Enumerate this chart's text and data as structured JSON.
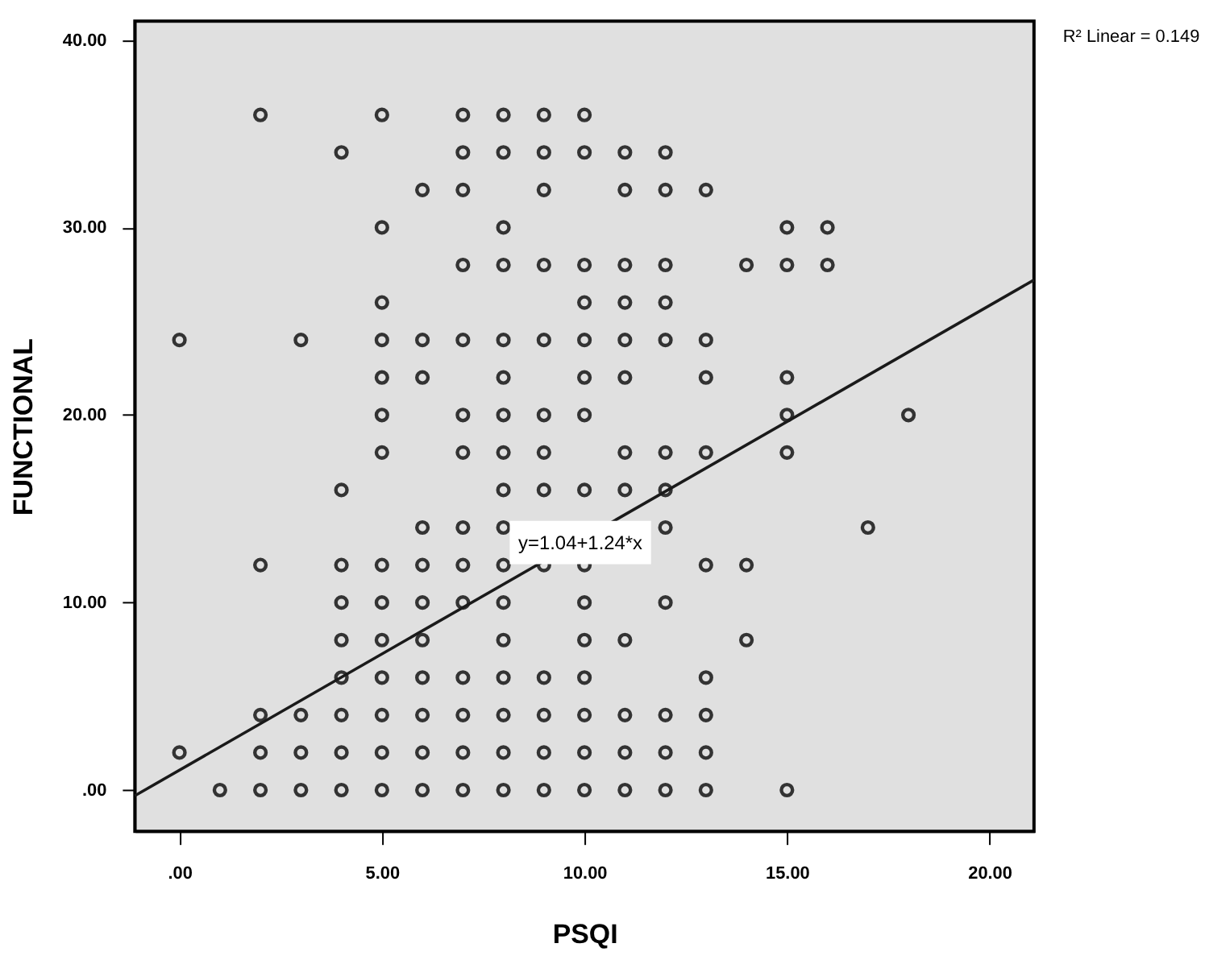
{
  "chart_data": {
    "type": "scatter",
    "xlabel": "PSQI",
    "ylabel": "FUNCTIONAL",
    "xlim": [
      -1.1,
      21.1
    ],
    "ylim": [
      -2.2,
      41
    ],
    "xticks": [
      {
        "value": 0,
        "label": ".00"
      },
      {
        "value": 5,
        "label": "5.00"
      },
      {
        "value": 10,
        "label": "10.00"
      },
      {
        "value": 15,
        "label": "15.00"
      },
      {
        "value": 20,
        "label": "20.00"
      }
    ],
    "yticks": [
      {
        "value": 0,
        "label": ".00"
      },
      {
        "value": 10,
        "label": "10.00"
      },
      {
        "value": 20,
        "label": "20.00"
      },
      {
        "value": 30,
        "label": "30.00"
      },
      {
        "value": 40,
        "label": "40.00"
      }
    ],
    "grid": false,
    "marker": "circle",
    "series": [
      {
        "type": "scatter",
        "color": "#333333",
        "x": [
          2,
          5,
          7,
          8,
          9,
          10,
          4,
          7,
          8,
          9,
          10,
          11,
          12,
          6,
          7,
          9,
          11,
          12,
          13,
          5,
          8,
          15,
          16,
          7,
          8,
          9,
          10,
          11,
          12,
          14,
          15,
          16,
          5,
          10,
          11,
          12,
          0,
          3,
          5,
          6,
          7,
          8,
          9,
          10,
          11,
          12,
          13,
          5,
          6,
          8,
          10,
          11,
          13,
          15,
          5,
          7,
          8,
          9,
          10,
          15,
          18,
          5,
          7,
          8,
          9,
          11,
          12,
          13,
          15,
          4,
          8,
          9,
          10,
          11,
          12,
          6,
          7,
          8,
          12,
          17,
          2,
          4,
          5,
          6,
          7,
          8,
          9,
          10,
          13,
          14,
          4,
          5,
          6,
          7,
          8,
          10,
          12,
          4,
          5,
          6,
          8,
          10,
          11,
          14,
          4,
          5,
          6,
          7,
          8,
          9,
          10,
          13,
          2,
          3,
          4,
          5,
          6,
          7,
          8,
          9,
          10,
          11,
          12,
          13,
          0,
          2,
          3,
          4,
          5,
          6,
          7,
          8,
          9,
          10,
          11,
          12,
          13,
          1,
          2,
          3,
          4,
          5,
          6,
          7,
          8,
          9,
          10,
          11,
          12,
          13,
          15
        ],
        "values": [
          36,
          36,
          36,
          36,
          36,
          36,
          34,
          34,
          34,
          34,
          34,
          34,
          34,
          32,
          32,
          32,
          32,
          32,
          32,
          30,
          30,
          30,
          30,
          28,
          28,
          28,
          28,
          28,
          28,
          28,
          28,
          28,
          26,
          26,
          26,
          26,
          24,
          24,
          24,
          24,
          24,
          24,
          24,
          24,
          24,
          24,
          24,
          22,
          22,
          22,
          22,
          22,
          22,
          22,
          20,
          20,
          20,
          20,
          20,
          20,
          20,
          18,
          18,
          18,
          18,
          18,
          18,
          18,
          18,
          16,
          16,
          16,
          16,
          16,
          16,
          14,
          14,
          14,
          14,
          14,
          12,
          12,
          12,
          12,
          12,
          12,
          12,
          12,
          12,
          12,
          10,
          10,
          10,
          10,
          10,
          10,
          10,
          8,
          8,
          8,
          8,
          8,
          8,
          8,
          6,
          6,
          6,
          6,
          6,
          6,
          6,
          6,
          4,
          4,
          4,
          4,
          4,
          4,
          4,
          4,
          4,
          4,
          4,
          4,
          2,
          2,
          2,
          2,
          2,
          2,
          2,
          2,
          2,
          2,
          2,
          2,
          2,
          0,
          0,
          0,
          0,
          0,
          0,
          0,
          0,
          0,
          0,
          0,
          0,
          0,
          0
        ]
      },
      {
        "type": "line",
        "color": "#1a1a1a",
        "marker": "none",
        "x": [
          -1.1,
          21.1
        ],
        "values": [
          -0.3,
          27.2
        ]
      }
    ],
    "annotations": [
      {
        "text": "y=1.04+1.24*x",
        "x": 9.9,
        "y": 13.2
      },
      "R² Linear = 0.149"
    ]
  }
}
